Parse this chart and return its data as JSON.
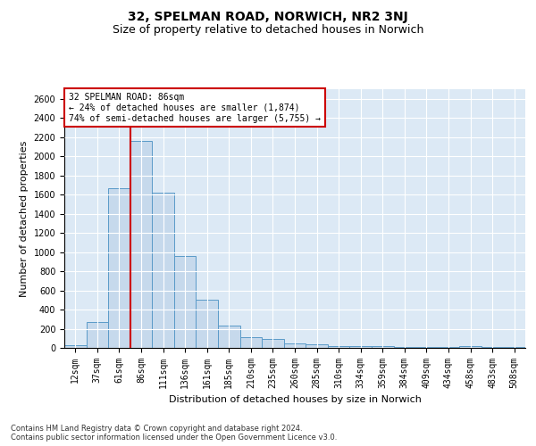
{
  "title": "32, SPELMAN ROAD, NORWICH, NR2 3NJ",
  "subtitle": "Size of property relative to detached houses in Norwich",
  "xlabel": "Distribution of detached houses by size in Norwich",
  "ylabel": "Number of detached properties",
  "categories": [
    "12sqm",
    "37sqm",
    "61sqm",
    "86sqm",
    "111sqm",
    "136sqm",
    "161sqm",
    "185sqm",
    "210sqm",
    "235sqm",
    "260sqm",
    "285sqm",
    "310sqm",
    "334sqm",
    "359sqm",
    "384sqm",
    "409sqm",
    "434sqm",
    "458sqm",
    "483sqm",
    "508sqm"
  ],
  "values": [
    30,
    270,
    1670,
    2160,
    1620,
    960,
    500,
    235,
    115,
    90,
    45,
    40,
    20,
    20,
    20,
    10,
    5,
    5,
    20,
    5,
    5
  ],
  "bar_color": "#c6d9ec",
  "bar_edge_color": "#5a9ac8",
  "vline_index": 3,
  "vline_color": "#cc0000",
  "annotation_text": "32 SPELMAN ROAD: 86sqm\n← 24% of detached houses are smaller (1,874)\n74% of semi-detached houses are larger (5,755) →",
  "annotation_box_color": "#ffffff",
  "annotation_box_edge": "#cc0000",
  "ylim": [
    0,
    2700
  ],
  "yticks": [
    0,
    200,
    400,
    600,
    800,
    1000,
    1200,
    1400,
    1600,
    1800,
    2000,
    2200,
    2400,
    2600
  ],
  "background_color": "#ffffff",
  "plot_bg_color": "#dce9f5",
  "grid_color": "#ffffff",
  "footnote": "Contains HM Land Registry data © Crown copyright and database right 2024.\nContains public sector information licensed under the Open Government Licence v3.0.",
  "title_fontsize": 10,
  "subtitle_fontsize": 9,
  "xlabel_fontsize": 8,
  "ylabel_fontsize": 8,
  "tick_fontsize": 7,
  "annot_fontsize": 7,
  "footnote_fontsize": 6
}
